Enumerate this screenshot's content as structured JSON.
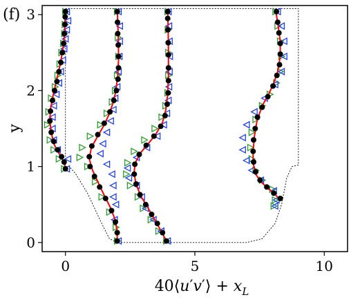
{
  "panel_label": "(f)",
  "chart_data": {
    "type": "line",
    "xlabel_parts": [
      "40",
      "⟨",
      "u",
      "′",
      "v",
      "′",
      "⟩ + ",
      "x",
      "L"
    ],
    "ylabel": "y",
    "xlim": [
      -0.9,
      10.9
    ],
    "ylim": [
      -0.12,
      3.12
    ],
    "x_ticks": [
      0,
      5,
      10
    ],
    "x_tick_labels": [
      "0",
      "5",
      "10"
    ],
    "y_ticks": [
      0,
      1,
      2,
      3
    ],
    "y_tick_labels": [
      "0",
      "1",
      "2",
      "3"
    ],
    "grid": false,
    "legend": "none",
    "colors": {
      "line": "#ff0000",
      "black": "#000000",
      "green": "#2ca02c",
      "blue": "#1f3fff",
      "geometry": "#000000"
    },
    "geometry_outline": [
      [
        0,
        3.08
      ],
      [
        9.0,
        3.08
      ],
      [
        9.0,
        1.02
      ],
      [
        8.75,
        1.0
      ],
      [
        8.55,
        0.85
      ],
      [
        8.35,
        0.5
      ],
      [
        8.1,
        0.25
      ],
      [
        7.6,
        0.05
      ],
      [
        7.0,
        0.0
      ],
      [
        2.0,
        0.0
      ],
      [
        1.7,
        0.05
      ],
      [
        1.4,
        0.25
      ],
      [
        0.85,
        0.65
      ],
      [
        0.4,
        0.9
      ],
      [
        0.15,
        1.0
      ],
      [
        0,
        1.0
      ],
      [
        0,
        3.08
      ]
    ],
    "series": [
      {
        "offset": 0,
        "line": [
          [
            0.0,
            0.97
          ],
          [
            -0.05,
            1.05
          ],
          [
            -0.15,
            1.12
          ],
          [
            -0.3,
            1.2
          ],
          [
            -0.45,
            1.3
          ],
          [
            -0.55,
            1.45
          ],
          [
            -0.6,
            1.6
          ],
          [
            -0.58,
            1.75
          ],
          [
            -0.5,
            1.9
          ],
          [
            -0.4,
            2.05
          ],
          [
            -0.3,
            2.2
          ],
          [
            -0.2,
            2.35
          ],
          [
            -0.12,
            2.5
          ],
          [
            -0.06,
            2.65
          ],
          [
            -0.03,
            2.8
          ],
          [
            -0.01,
            2.95
          ],
          [
            0.0,
            3.05
          ]
        ],
        "black": [
          [
            0.0,
            0.97
          ],
          [
            -0.05,
            1.06
          ],
          [
            -0.15,
            1.13
          ],
          [
            -0.3,
            1.22
          ],
          [
            -0.45,
            1.33
          ],
          [
            -0.55,
            1.45
          ],
          [
            -0.6,
            1.6
          ],
          [
            -0.58,
            1.73
          ],
          [
            -0.5,
            1.87
          ],
          [
            -0.42,
            2.0
          ],
          [
            -0.33,
            2.12
          ],
          [
            -0.25,
            2.25
          ],
          [
            -0.18,
            2.37
          ],
          [
            -0.12,
            2.5
          ],
          [
            -0.07,
            2.62
          ],
          [
            -0.04,
            2.75
          ],
          [
            -0.02,
            2.87
          ],
          [
            -0.01,
            2.97
          ],
          [
            0.0,
            3.04
          ]
        ],
        "green": [
          [
            -0.05,
            0.97
          ],
          [
            -0.25,
            1.1
          ],
          [
            -0.45,
            1.22
          ],
          [
            -0.6,
            1.35
          ],
          [
            -0.7,
            1.55
          ],
          [
            -0.65,
            1.72
          ],
          [
            -0.55,
            1.9
          ],
          [
            -0.4,
            2.05
          ],
          [
            -0.3,
            2.2
          ],
          [
            -0.22,
            2.35
          ],
          [
            -0.15,
            2.5
          ],
          [
            -0.08,
            2.62
          ],
          [
            -0.04,
            2.75
          ],
          [
            -0.02,
            2.87
          ],
          [
            0.0,
            3.04
          ]
        ],
        "blue": [
          [
            0.05,
            0.97
          ],
          [
            0.1,
            1.1
          ],
          [
            -0.3,
            1.22
          ],
          [
            -0.45,
            1.35
          ],
          [
            -0.5,
            1.5
          ],
          [
            -0.5,
            1.65
          ],
          [
            -0.45,
            1.8
          ],
          [
            -0.35,
            1.95
          ],
          [
            -0.25,
            2.1
          ],
          [
            -0.18,
            2.25
          ],
          [
            -0.1,
            2.4
          ],
          [
            -0.05,
            2.55
          ],
          [
            0.0,
            2.68
          ],
          [
            0.05,
            2.8
          ],
          [
            0.1,
            2.92
          ],
          [
            0.05,
            3.04
          ]
        ]
      },
      {
        "offset": 2,
        "line": [
          [
            2.0,
            0.02
          ],
          [
            2.0,
            0.15
          ],
          [
            1.92,
            0.3
          ],
          [
            1.75,
            0.45
          ],
          [
            1.5,
            0.62
          ],
          [
            1.25,
            0.8
          ],
          [
            1.05,
            0.95
          ],
          [
            0.92,
            1.1
          ],
          [
            1.0,
            1.25
          ],
          [
            1.25,
            1.4
          ],
          [
            1.5,
            1.55
          ],
          [
            1.7,
            1.7
          ],
          [
            1.85,
            1.85
          ],
          [
            1.95,
            2.0
          ],
          [
            2.02,
            2.2
          ],
          [
            2.05,
            2.4
          ],
          [
            2.05,
            2.6
          ],
          [
            2.03,
            2.8
          ],
          [
            2.01,
            3.0
          ],
          [
            2.0,
            3.05
          ]
        ],
        "black": [
          [
            2.0,
            0.02
          ],
          [
            2.0,
            0.13
          ],
          [
            1.93,
            0.27
          ],
          [
            1.78,
            0.42
          ],
          [
            1.55,
            0.58
          ],
          [
            1.32,
            0.73
          ],
          [
            1.12,
            0.87
          ],
          [
            0.95,
            1.0
          ],
          [
            0.92,
            1.13
          ],
          [
            1.02,
            1.27
          ],
          [
            1.25,
            1.42
          ],
          [
            1.5,
            1.57
          ],
          [
            1.72,
            1.72
          ],
          [
            1.87,
            1.87
          ],
          [
            1.97,
            2.0
          ],
          [
            2.03,
            2.15
          ],
          [
            2.05,
            2.3
          ],
          [
            2.05,
            2.45
          ],
          [
            2.04,
            2.6
          ],
          [
            2.02,
            2.75
          ],
          [
            2.01,
            2.9
          ],
          [
            2.0,
            3.04
          ]
        ],
        "green": [
          [
            2.0,
            0.02
          ],
          [
            1.95,
            0.2
          ],
          [
            1.7,
            0.4
          ],
          [
            1.4,
            0.6
          ],
          [
            1.15,
            0.8
          ],
          [
            0.85,
            1.0
          ],
          [
            0.55,
            1.12
          ],
          [
            0.65,
            1.25
          ],
          [
            0.95,
            1.4
          ],
          [
            1.35,
            1.55
          ],
          [
            1.6,
            1.7
          ],
          [
            1.8,
            1.85
          ],
          [
            1.92,
            2.0
          ],
          [
            2.0,
            2.2
          ],
          [
            2.05,
            2.45
          ],
          [
            2.03,
            2.7
          ],
          [
            2.0,
            3.04
          ]
        ],
        "blue": [
          [
            2.05,
            0.02
          ],
          [
            1.9,
            0.3
          ],
          [
            1.95,
            0.5
          ],
          [
            1.85,
            0.6
          ],
          [
            1.85,
            0.75
          ],
          [
            1.8,
            0.9
          ],
          [
            1.6,
            1.03
          ],
          [
            1.35,
            1.17
          ],
          [
            1.45,
            1.3
          ],
          [
            1.6,
            1.45
          ],
          [
            1.75,
            1.6
          ],
          [
            1.85,
            1.75
          ],
          [
            1.92,
            1.9
          ],
          [
            2.0,
            2.05
          ],
          [
            2.05,
            2.25
          ],
          [
            2.08,
            2.45
          ],
          [
            2.1,
            2.65
          ],
          [
            2.1,
            2.85
          ],
          [
            2.05,
            3.04
          ]
        ]
      },
      {
        "offset": 4,
        "line": [
          [
            3.9,
            0.02
          ],
          [
            3.7,
            0.15
          ],
          [
            3.45,
            0.3
          ],
          [
            3.2,
            0.45
          ],
          [
            2.9,
            0.62
          ],
          [
            2.72,
            0.78
          ],
          [
            2.65,
            0.92
          ],
          [
            2.7,
            1.05
          ],
          [
            2.9,
            1.18
          ],
          [
            3.2,
            1.3
          ],
          [
            3.5,
            1.43
          ],
          [
            3.75,
            1.58
          ],
          [
            3.88,
            1.75
          ],
          [
            3.95,
            1.95
          ],
          [
            3.98,
            2.2
          ],
          [
            3.98,
            2.5
          ],
          [
            3.97,
            2.8
          ],
          [
            3.95,
            3.05
          ]
        ],
        "black": [
          [
            3.9,
            0.02
          ],
          [
            3.75,
            0.13
          ],
          [
            3.55,
            0.25
          ],
          [
            3.33,
            0.37
          ],
          [
            3.1,
            0.5
          ],
          [
            2.88,
            0.63
          ],
          [
            2.73,
            0.77
          ],
          [
            2.66,
            0.9
          ],
          [
            2.68,
            1.03
          ],
          [
            2.85,
            1.16
          ],
          [
            3.12,
            1.28
          ],
          [
            3.42,
            1.4
          ],
          [
            3.68,
            1.53
          ],
          [
            3.85,
            1.67
          ],
          [
            3.93,
            1.82
          ],
          [
            3.97,
            1.97
          ],
          [
            3.98,
            2.13
          ],
          [
            3.98,
            2.3
          ],
          [
            3.98,
            2.47
          ],
          [
            3.97,
            2.63
          ],
          [
            3.96,
            2.8
          ],
          [
            3.95,
            2.95
          ],
          [
            3.95,
            3.04
          ]
        ],
        "green": [
          [
            3.9,
            0.02
          ],
          [
            3.6,
            0.15
          ],
          [
            3.3,
            0.3
          ],
          [
            3.0,
            0.45
          ],
          [
            2.8,
            0.6
          ],
          [
            2.5,
            0.75
          ],
          [
            2.35,
            0.9
          ],
          [
            2.4,
            1.05
          ],
          [
            2.65,
            1.2
          ],
          [
            3.05,
            1.35
          ],
          [
            3.45,
            1.5
          ],
          [
            3.72,
            1.65
          ],
          [
            3.87,
            1.8
          ],
          [
            3.95,
            1.97
          ],
          [
            3.98,
            2.2
          ],
          [
            3.98,
            2.5
          ],
          [
            3.96,
            2.8
          ],
          [
            3.95,
            3.04
          ]
        ],
        "blue": [
          [
            3.95,
            0.02
          ],
          [
            3.7,
            0.15
          ],
          [
            3.4,
            0.3
          ],
          [
            3.1,
            0.45
          ],
          [
            2.95,
            0.6
          ],
          [
            2.75,
            0.75
          ],
          [
            2.45,
            0.85
          ],
          [
            2.4,
            0.98
          ],
          [
            2.75,
            1.12
          ],
          [
            3.15,
            1.25
          ],
          [
            3.55,
            1.4
          ],
          [
            3.8,
            1.55
          ],
          [
            3.92,
            1.7
          ],
          [
            3.98,
            1.87
          ],
          [
            4.0,
            2.05
          ],
          [
            4.02,
            2.25
          ],
          [
            4.03,
            2.45
          ],
          [
            4.02,
            2.65
          ],
          [
            4.0,
            2.85
          ],
          [
            3.98,
            3.04
          ]
        ]
      },
      {
        "offset": 8,
        "line": [
          [
            8.25,
            0.58
          ],
          [
            8.05,
            0.65
          ],
          [
            7.8,
            0.72
          ],
          [
            7.55,
            0.8
          ],
          [
            7.35,
            0.9
          ],
          [
            7.25,
            1.05
          ],
          [
            7.25,
            1.2
          ],
          [
            7.3,
            1.4
          ],
          [
            7.4,
            1.6
          ],
          [
            7.6,
            1.8
          ],
          [
            7.85,
            1.95
          ],
          [
            8.05,
            2.1
          ],
          [
            8.2,
            2.25
          ],
          [
            8.3,
            2.45
          ],
          [
            8.3,
            2.65
          ],
          [
            8.22,
            2.85
          ],
          [
            8.15,
            3.0
          ],
          [
            8.12,
            3.05
          ]
        ],
        "black": [
          [
            8.3,
            0.58
          ],
          [
            8.05,
            0.65
          ],
          [
            7.78,
            0.73
          ],
          [
            7.52,
            0.82
          ],
          [
            7.35,
            0.93
          ],
          [
            7.27,
            1.06
          ],
          [
            7.25,
            1.2
          ],
          [
            7.27,
            1.35
          ],
          [
            7.33,
            1.5
          ],
          [
            7.42,
            1.65
          ],
          [
            7.6,
            1.78
          ],
          [
            7.82,
            1.92
          ],
          [
            8.02,
            2.06
          ],
          [
            8.17,
            2.2
          ],
          [
            8.27,
            2.34
          ],
          [
            8.3,
            2.48
          ],
          [
            8.3,
            2.62
          ],
          [
            8.25,
            2.76
          ],
          [
            8.2,
            2.9
          ],
          [
            8.15,
            3.04
          ]
        ],
        "green": [
          [
            8.05,
            0.48
          ],
          [
            8.1,
            0.56
          ],
          [
            8.0,
            0.7
          ],
          [
            7.6,
            0.82
          ],
          [
            7.35,
            0.95
          ],
          [
            7.2,
            1.1
          ],
          [
            7.15,
            1.25
          ],
          [
            7.2,
            1.45
          ],
          [
            7.35,
            1.62
          ],
          [
            7.6,
            1.8
          ],
          [
            7.9,
            1.95
          ],
          [
            8.15,
            2.1
          ],
          [
            8.3,
            2.25
          ],
          [
            8.35,
            2.45
          ],
          [
            8.3,
            2.65
          ],
          [
            8.2,
            2.85
          ],
          [
            8.12,
            3.04
          ]
        ],
        "blue": [
          [
            8.1,
            0.48
          ],
          [
            8.15,
            0.56
          ],
          [
            8.05,
            0.68
          ],
          [
            7.55,
            0.82
          ],
          [
            7.2,
            0.95
          ],
          [
            7.0,
            1.08
          ],
          [
            6.85,
            1.22
          ],
          [
            6.85,
            1.38
          ],
          [
            7.0,
            1.55
          ],
          [
            7.3,
            1.72
          ],
          [
            7.7,
            1.9
          ],
          [
            8.1,
            2.08
          ],
          [
            8.35,
            2.25
          ],
          [
            8.45,
            2.45
          ],
          [
            8.45,
            2.65
          ],
          [
            8.35,
            2.85
          ],
          [
            8.2,
            3.04
          ]
        ]
      }
    ]
  }
}
